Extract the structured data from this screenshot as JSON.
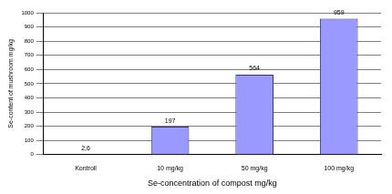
{
  "chart_data": {
    "type": "bar",
    "x_label": "Se-concentration of compost mg/kg",
    "y_label": "Se-content of mushroom mg/kg",
    "categories": [
      "Kontroll",
      "10 mg/kg",
      "50 mg/kg",
      "100 mg/kg"
    ],
    "values": [
      2.6,
      197,
      564,
      959
    ],
    "value_labels": [
      "2,6",
      "197",
      "564",
      "959"
    ],
    "colors": [
      "#993366",
      "#9999ff",
      "#9999ff",
      "#9999ff"
    ],
    "ylim": [
      0,
      1000
    ],
    "yticks": [
      0,
      100,
      200,
      300,
      400,
      500,
      600,
      700,
      800,
      900,
      1000
    ],
    "grid": true,
    "data_labels": true
  }
}
